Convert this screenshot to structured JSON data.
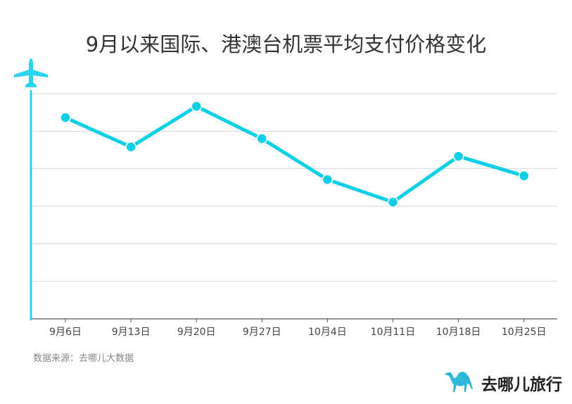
{
  "chart_data": {
    "type": "line",
    "title": "9月以来国际、港澳台机票平均支付价格变化",
    "categories": [
      "9月6日",
      "9月13日",
      "9月20日",
      "9月27日",
      "10月4日",
      "10月11日",
      "10月18日",
      "10月25日"
    ],
    "values": [
      5.36,
      4.58,
      5.66,
      4.8,
      3.71,
      3.11,
      4.33,
      3.81
    ],
    "value_units": "relative (no y-axis labels shown; gridline units)",
    "ylim": [
      0,
      6
    ],
    "grid": true,
    "xlabel": "",
    "ylabel": "",
    "line_color": "#0ccfe6",
    "axis_color": "#2ad3ef"
  },
  "source": "数据来源：去哪儿大数据",
  "brand": {
    "name": "去哪儿旅行",
    "icon": "camel-icon",
    "color": "#2bb8d6"
  },
  "axis_icon": "airplane-icon"
}
